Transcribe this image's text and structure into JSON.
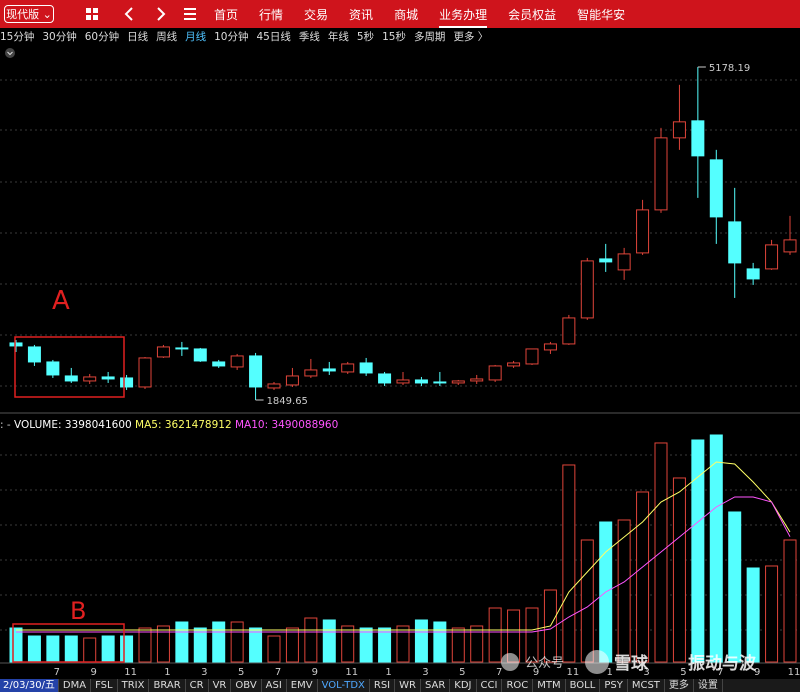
{
  "toolbar": {
    "version": "现代版",
    "menu": [
      "首页",
      "行情",
      "交易",
      "资讯",
      "商城",
      "业务办理",
      "会员权益",
      "智能华安"
    ],
    "active_menu": 5
  },
  "periods": {
    "items": [
      "15分钟",
      "30分钟",
      "60分钟",
      "日线",
      "周线",
      "月线",
      "10分钟",
      "45日线",
      "季线",
      "年线",
      "5秒",
      "15秒",
      "多周期",
      "更多 〉"
    ],
    "active": 5
  },
  "chart_data": {
    "type": "candlestick",
    "categories": [
      null,
      null,
      "7",
      null,
      "9",
      null,
      "11",
      null,
      "1",
      null,
      "3",
      null,
      "5",
      null,
      "7",
      null,
      "9",
      null,
      "11",
      null,
      "1",
      null,
      "3",
      null,
      "5",
      null,
      "7",
      null,
      "9",
      null,
      "11",
      null,
      "1",
      null,
      "3",
      null,
      "5",
      null,
      "7",
      null,
      "9",
      null,
      "11"
    ],
    "open": [
      2420,
      2380,
      2230,
      2090,
      2040,
      2080,
      2070,
      1980,
      2280,
      2370,
      2360,
      2230,
      2180,
      2290,
      1970,
      2000,
      2090,
      2160,
      2130,
      2220,
      2110,
      2020,
      2050,
      2030,
      2020,
      2040,
      2050,
      2190,
      2210,
      2350,
      2410,
      2670,
      3260,
      3150,
      3320,
      3750,
      4470,
      4640,
      4250,
      3630,
      3160,
      3160,
      3330
    ],
    "close": [
      2390,
      2230,
      2100,
      2040,
      2080,
      2060,
      1980,
      2270,
      2380,
      2360,
      2240,
      2190,
      2290,
      1980,
      2010,
      2090,
      2150,
      2140,
      2210,
      2120,
      2020,
      2050,
      2020,
      2020,
      2040,
      2060,
      2190,
      2220,
      2360,
      2410,
      2670,
      3240,
      3230,
      3310,
      3750,
      4470,
      4630,
      4290,
      3680,
      3220,
      3060,
      3400,
      3450
    ],
    "high": [
      2450,
      2400,
      2250,
      2170,
      2110,
      2130,
      2100,
      2280,
      2400,
      2430,
      2370,
      2250,
      2310,
      2320,
      2030,
      2170,
      2260,
      2230,
      2230,
      2270,
      2130,
      2130,
      2080,
      2130,
      2050,
      2100,
      2200,
      2240,
      2360,
      2430,
      2700,
      3270,
      3410,
      3370,
      3850,
      4570,
      5000,
      5178.19,
      4350,
      3970,
      3220,
      3450,
      3690
    ],
    "low": [
      2330,
      2190,
      2070,
      2020,
      2010,
      2020,
      1950,
      1960,
      2270,
      2290,
      2230,
      2170,
      2150,
      1849.65,
      1950,
      1980,
      2070,
      2100,
      2110,
      2090,
      1990,
      2000,
      1990,
      1990,
      2000,
      2010,
      2030,
      2170,
      2200,
      2310,
      2400,
      2650,
      3130,
      3050,
      3300,
      3720,
      4350,
      3870,
      3410,
      2870,
      3000,
      3150,
      3300
    ],
    "up_color": "#e0453a",
    "down_color": "#54ffff",
    "annotations": [
      "A",
      "B"
    ],
    "volume": {
      "prefix": ": -",
      "label": "VOLUME:",
      "color": "#ffffff",
      "values": [
        947000000,
        724000000,
        724000000,
        724000000,
        668000000,
        724000000,
        724000000,
        947000000,
        1003000000,
        1114000000,
        947000000,
        1114000000,
        1114000000,
        947000000,
        724000000,
        947000000,
        1225000000,
        1170000000,
        1003000000,
        947000000,
        947000000,
        1003000000,
        1170000000,
        1114000000,
        947000000,
        1003000000,
        1504000000,
        1448000000,
        1504000000,
        2005000000,
        5487000000,
        3398000000,
        3899000000,
        3955000000,
        4735000000,
        6100000000,
        5125000000,
        6183000000,
        6322000000,
        4178000000,
        2618000000,
        2674000000,
        3398041600
      ],
      "ma": [
        {
          "name": "MA5:",
          "color": "#ffff66",
          "values": [
            891000000,
            891000000,
            891000000,
            891000000,
            891000000,
            891000000,
            891000000,
            891000000,
            891000000,
            891000000,
            891000000,
            891000000,
            891000000,
            891000000,
            891000000,
            891000000,
            891000000,
            891000000,
            891000000,
            891000000,
            891000000,
            891000000,
            891000000,
            891000000,
            891000000,
            891000000,
            891000000,
            891000000,
            891000000,
            1003000000,
            1950000000,
            2507000000,
            3064000000,
            3481000000,
            3899000000,
            4456000000,
            4735000000,
            5153000000,
            5570000000,
            5515000000,
            5013000000,
            4456000000,
            3621478912
          ]
        },
        {
          "name": "MA10:",
          "color": "#ff55ff",
          "values": [
            836000000,
            836000000,
            836000000,
            836000000,
            836000000,
            836000000,
            836000000,
            836000000,
            836000000,
            836000000,
            836000000,
            836000000,
            836000000,
            836000000,
            836000000,
            836000000,
            836000000,
            836000000,
            836000000,
            836000000,
            836000000,
            836000000,
            836000000,
            836000000,
            836000000,
            836000000,
            836000000,
            836000000,
            836000000,
            919000000,
            1253000000,
            1532000000,
            1950000000,
            2228000000,
            2646000000,
            3064000000,
            3481000000,
            3899000000,
            4317000000,
            4596000000,
            4596000000,
            4456000000,
            3490088960
          ]
        }
      ]
    }
  },
  "watermark": [
    "公众号",
    "雪球",
    "振动与波"
  ],
  "bottom_tabs": {
    "date": "2/03/30/五",
    "items": [
      "DMA",
      "FSL",
      "TRIX",
      "BRAR",
      "CR",
      "VR",
      "OBV",
      "ASI",
      "EMV",
      "VOL-TDX",
      "RSI",
      "WR",
      "SAR",
      "KDJ",
      "CCI",
      "ROC",
      "MTM",
      "BOLL",
      "PSY",
      "MCST",
      "更多",
      "设置"
    ],
    "active": 9
  }
}
